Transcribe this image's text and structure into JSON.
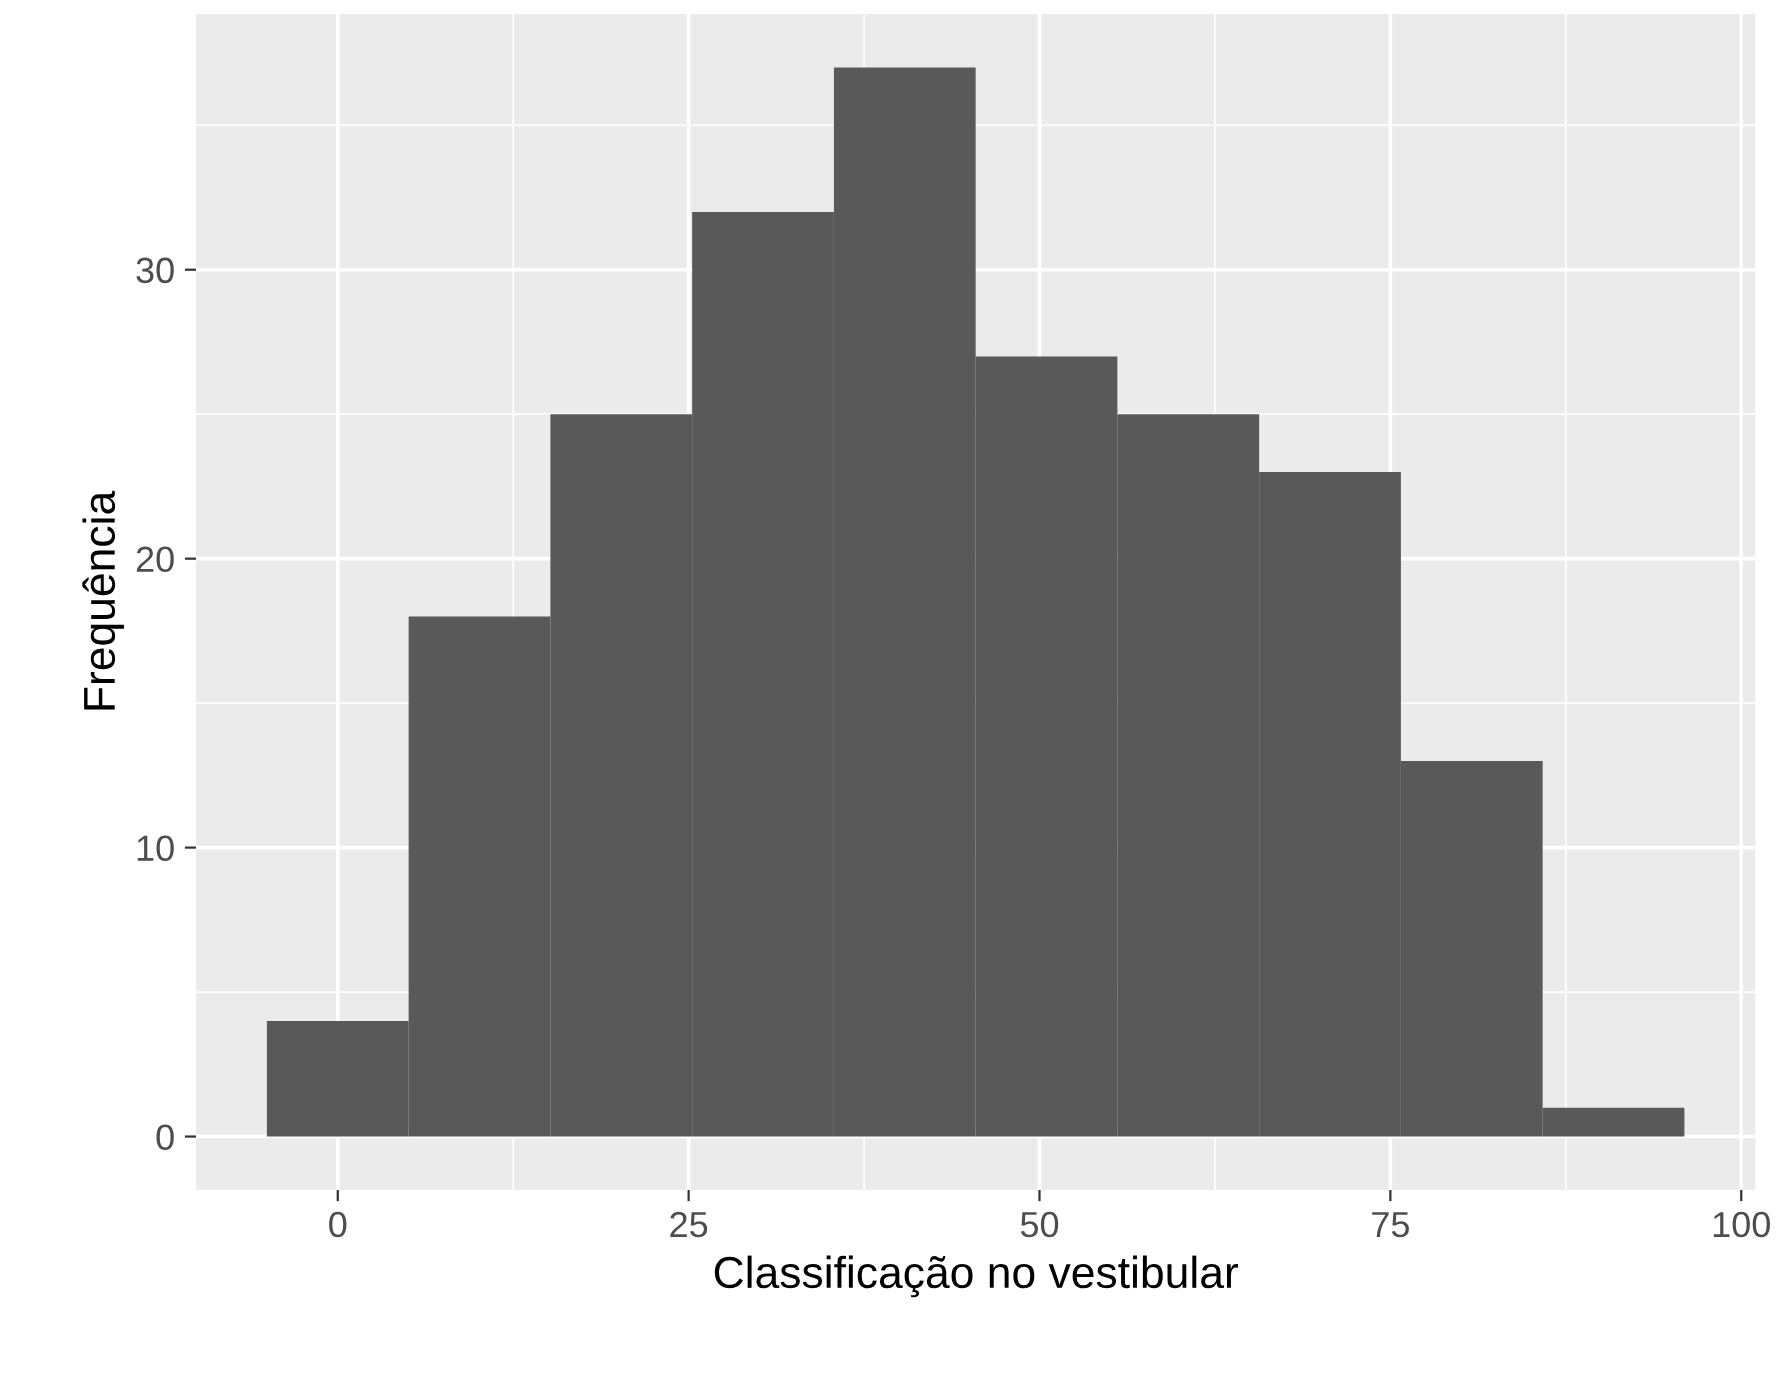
{
  "chart_data": {
    "type": "histogram",
    "xlabel": "Classificação no vestibular",
    "ylabel": "Frequência",
    "bins": [
      -5.05,
      5.05,
      15.15,
      25.25,
      35.35,
      45.45,
      55.55,
      65.65,
      75.75,
      85.85,
      95.95
    ],
    "values": [
      4,
      18,
      25,
      32,
      37,
      27,
      25,
      23,
      13,
      1
    ],
    "color": "#595959",
    "xlim": [
      -10.1,
      101
    ],
    "ylim": [
      -1.85,
      38.85
    ],
    "xticks": [
      0,
      25,
      50,
      75,
      100
    ],
    "yticks": [
      0,
      10,
      20,
      30
    ],
    "grid": true
  }
}
